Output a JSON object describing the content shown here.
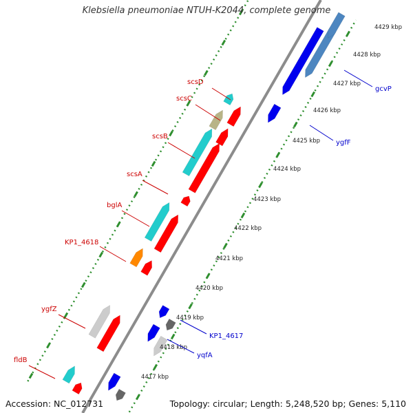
{
  "title": "Klebsiella pneumoniae NTUH-K2044, complete genome",
  "footer": {
    "accession": "Accession: NC_012731",
    "info": "Topology: circular; Length: 5,248,520 bp; Genes: 5,110"
  },
  "colors": {
    "backbone": "#8c8c8c",
    "tick": "#2f8f2f",
    "label_red": "#cc0000",
    "label_blue": "#0000cc",
    "red": "#ff0000",
    "cyan": "#22cccc",
    "blue": "#0000ee",
    "steel": "#4d86c0",
    "tan": "#b8b487",
    "orange": "#ff8800",
    "lightgray": "#cccccc",
    "darkgray": "#666666"
  },
  "ticks": [
    "4417 kbp",
    "4418 kbp",
    "4419 kbp",
    "4420 kbp",
    "4421 kbp",
    "4422 kbp",
    "4423 kbp",
    "4424 kbp",
    "4425 kbp",
    "4426 kbp",
    "4427 kbp",
    "4428 kbp",
    "4429 kbp"
  ],
  "gene_labels_left": [
    "scsD",
    "scsC",
    "scsB",
    "scsA",
    "bglA",
    "KP1_4618",
    "ygfZ",
    "fldB"
  ],
  "gene_labels_right": [
    "gcvP",
    "ygfF",
    "KP1_4617",
    "yqfA"
  ]
}
